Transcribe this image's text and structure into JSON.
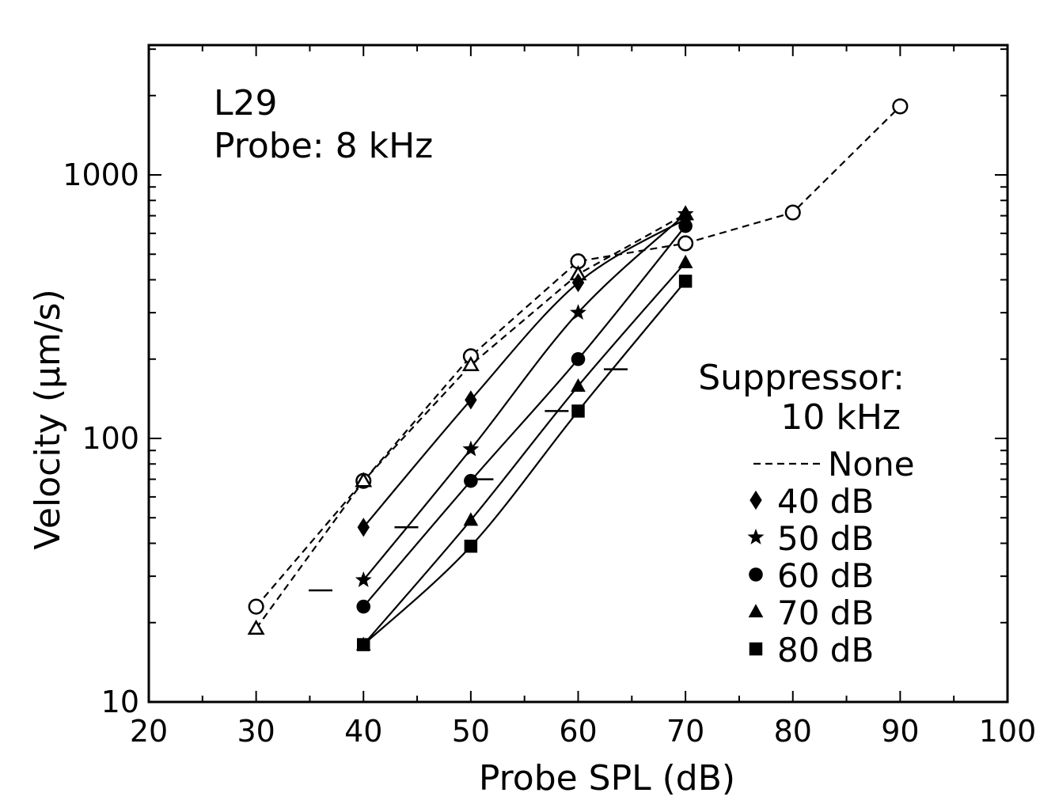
{
  "chart_data": {
    "type": "line",
    "xlabel": "Probe SPL (dB)",
    "ylabel": "Velocity (μm/s)",
    "xlim": [
      20,
      100
    ],
    "ylim": [
      10,
      2200
    ],
    "y_scale": "log",
    "x_ticks": [
      "20",
      "30",
      "40",
      "50",
      "60",
      "70",
      "80",
      "90",
      "100"
    ],
    "y_ticks": [
      "10",
      "100",
      "1000"
    ],
    "annotations": [
      "L29",
      "Probe:  8  kHz"
    ],
    "legend_title": [
      "Suppressor:",
      "10  kHz"
    ],
    "legend_placement": "right",
    "grid": false,
    "series": [
      {
        "name": "None",
        "marker": "open-circle",
        "style": "dashed",
        "x": [
          30,
          40,
          50,
          60,
          70,
          80,
          90
        ],
        "y": [
          23,
          69,
          205,
          470,
          550,
          720,
          1820
        ]
      },
      {
        "name": "",
        "marker": "open-triangle",
        "style": "dashed",
        "x": [
          30,
          40,
          50,
          60,
          70
        ],
        "y": [
          19,
          69,
          190,
          420,
          710
        ]
      },
      {
        "name": "40  dB",
        "marker": "diamond",
        "style": "solid",
        "x": [
          40,
          50,
          60,
          70
        ],
        "y": [
          46,
          140,
          390,
          680
        ]
      },
      {
        "name": "50  dB",
        "marker": "star",
        "style": "solid",
        "x": [
          40,
          50,
          60,
          70
        ],
        "y": [
          29,
          91,
          300,
          710
        ]
      },
      {
        "name": "60  dB",
        "marker": "circle",
        "style": "solid",
        "x": [
          40,
          50,
          60,
          70
        ],
        "y": [
          23,
          69,
          200,
          640
        ]
      },
      {
        "name": "70  dB",
        "marker": "triangle",
        "style": "solid",
        "x": [
          40,
          50,
          60,
          70
        ],
        "y": [
          16.5,
          49,
          158,
          465
        ]
      },
      {
        "name": "80  dB",
        "marker": "square",
        "style": "solid",
        "x": [
          40,
          50,
          60,
          70
        ],
        "y": [
          16.5,
          39,
          127,
          395
        ]
      }
    ],
    "dashes": [
      {
        "x": 36,
        "y": 26.5
      },
      {
        "x": 44,
        "y": 46
      },
      {
        "x": 51,
        "y": 70
      },
      {
        "x": 58,
        "y": 127
      },
      {
        "x": 63.5,
        "y": 183
      }
    ]
  }
}
